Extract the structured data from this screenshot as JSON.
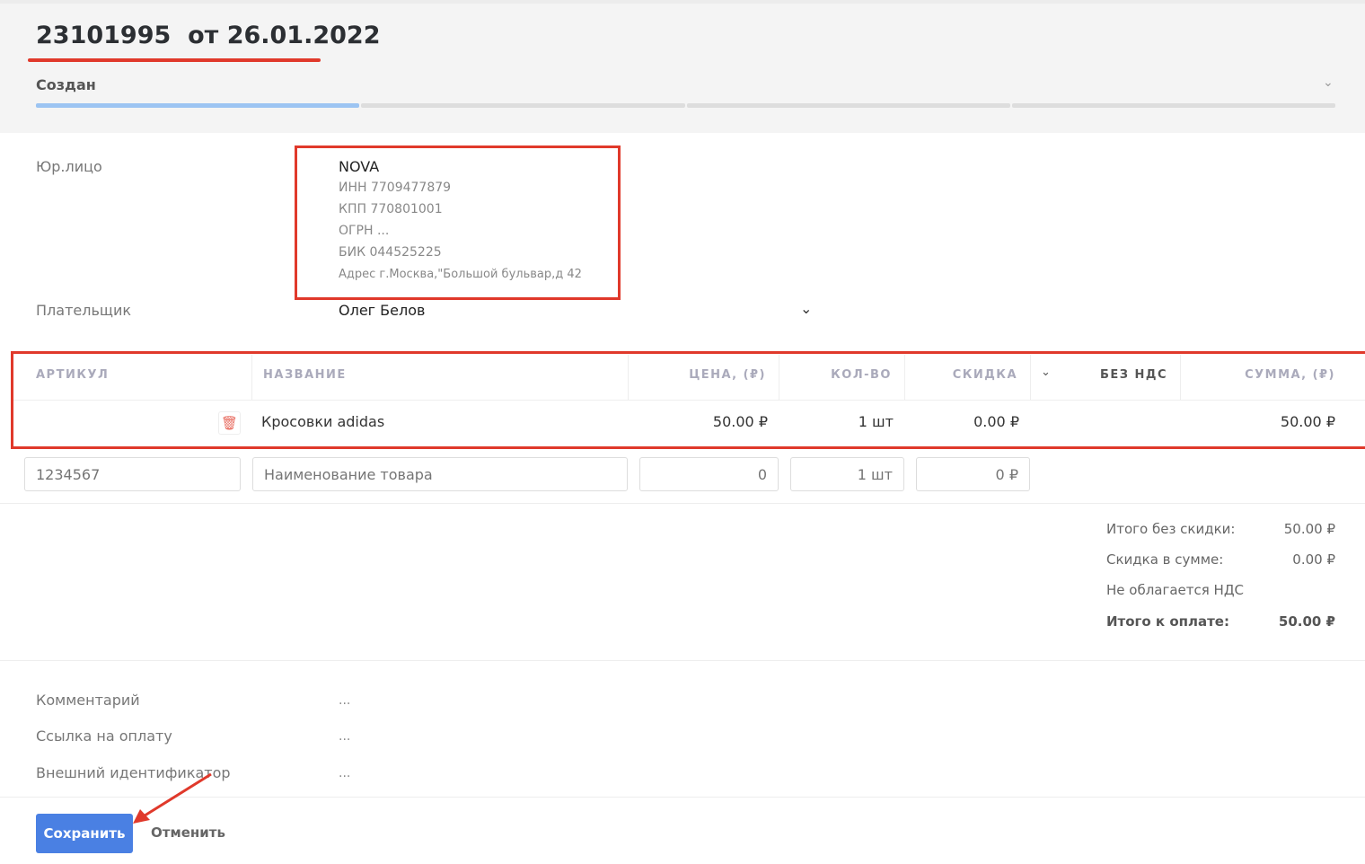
{
  "header": {
    "title": "23101995  от 26.01.2022",
    "status": "Создан",
    "progress_steps": 4,
    "progress_active": 1
  },
  "legal": {
    "label": "Юр.лицо",
    "name": "NOVA",
    "inn": "ИНН 7709477879",
    "kpp": "КПП 770801001",
    "ogrn": "ОГРН ...",
    "bik": "БИК 044525225",
    "address": "Адрес г.Москва,\"Большой бульвар,д 42"
  },
  "payer": {
    "label": "Плательщик",
    "value": "Олег Белов"
  },
  "table": {
    "headers": [
      "АРТИКУЛ",
      "НАЗВАНИЕ",
      "ЦЕНА, (₽)",
      "КОЛ-ВО",
      "СКИДКА",
      "БЕЗ НДС",
      "СУММА, (₽)"
    ],
    "rows": [
      {
        "article": "",
        "name": "Кросовки adidas",
        "price": "50.00 ₽",
        "qty": "1 шт",
        "discount": "0.00 ₽",
        "sum": "50.00 ₽"
      }
    ],
    "new_row": {
      "article_placeholder": "1234567",
      "name_placeholder": "Наименование товара",
      "price_placeholder": "0",
      "qty_placeholder": "1 шт",
      "discount_placeholder": "0 ₽"
    }
  },
  "totals": [
    {
      "label": "Итого без скидки:",
      "value": "50.00 ₽"
    },
    {
      "label": "Скидка в сумме:",
      "value": "0.00 ₽"
    },
    {
      "label": "Не облагается НДС",
      "value": ""
    },
    {
      "label": "Итого к оплате:",
      "value": "50.00 ₽"
    }
  ],
  "extra": [
    {
      "label": "Комментарий",
      "value": "..."
    },
    {
      "label": "Ссылка на оплату",
      "value": "..."
    },
    {
      "label": "Внешний идентификатор",
      "value": "..."
    }
  ],
  "actions": {
    "save": "Сохранить",
    "cancel": "Отменить"
  },
  "colors": {
    "annotation": "#e0392b",
    "primary": "#4a80e3",
    "progress": "#9cc4f2"
  }
}
